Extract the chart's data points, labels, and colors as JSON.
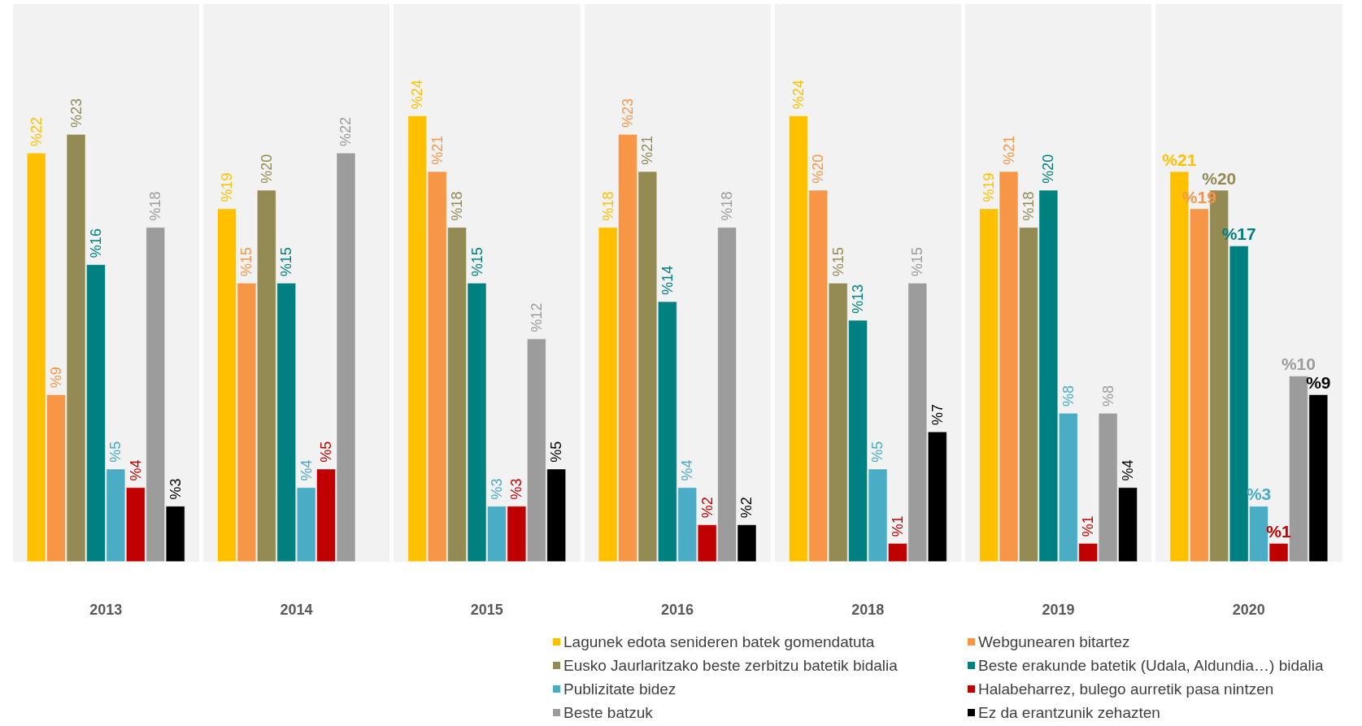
{
  "chart_data": {
    "type": "bar",
    "categories": [
      "2013",
      "2014",
      "2015",
      "2016",
      "2018",
      "2019",
      "2020"
    ],
    "series": [
      {
        "name": "Lagunek edota senideren batek gomendatuta",
        "color": "#ffc000",
        "values": [
          22,
          19,
          24,
          18,
          24,
          19,
          21
        ],
        "value_labels": [
          "%22",
          "%19",
          "%24",
          "%18",
          "%24",
          "%19",
          "%21"
        ]
      },
      {
        "name": "Webgunearen bitartez",
        "color": "#f79646",
        "values": [
          9,
          15,
          21,
          23,
          20,
          21,
          19
        ],
        "value_labels": [
          "%9",
          "%15",
          "%21",
          "%23",
          "%20",
          "%21",
          "%19"
        ]
      },
      {
        "name": "Eusko Jaurlaritzako beste zerbitzu batetik bidalia",
        "color": "#948a54",
        "values": [
          23,
          20,
          18,
          21,
          15,
          18,
          20
        ],
        "value_labels": [
          "%23",
          "%20",
          "%18",
          "%21",
          "%15",
          "%18",
          "%20"
        ]
      },
      {
        "name": "Beste erakunde batetik (Udala, Aldundia…) bidalia",
        "color": "#008080",
        "values": [
          16,
          15,
          15,
          14,
          13,
          20,
          17
        ],
        "value_labels": [
          "%16",
          "%15",
          "%15",
          "%14",
          "%13",
          "%20",
          "%17"
        ]
      },
      {
        "name": "Publizitate bidez",
        "color": "#4bacc6",
        "values": [
          5,
          4,
          3,
          4,
          5,
          8,
          3
        ],
        "value_labels": [
          "%5",
          "%4",
          "%3",
          "%4",
          "%5",
          "%8",
          "%3"
        ]
      },
      {
        "name": "Halabeharrez, bulego aurretik pasa nintzen",
        "color": "#c00000",
        "values": [
          4,
          5,
          3,
          2,
          1,
          1,
          1
        ],
        "value_labels": [
          "%4",
          "%5",
          "%3",
          "%2",
          "%1",
          "%1",
          "%1"
        ]
      },
      {
        "name": "Beste batzuk",
        "color": "#9c9c9c",
        "values": [
          18,
          22,
          12,
          18,
          15,
          8,
          10
        ],
        "value_labels": [
          "%18",
          "%22",
          "%12",
          "%18",
          "%15",
          "%8",
          "%10"
        ]
      },
      {
        "name": "Ez da erantzunik zehazten",
        "color": "#000000",
        "values": [
          3,
          null,
          5,
          2,
          7,
          4,
          9
        ],
        "value_labels": [
          "%3",
          null,
          "%5",
          "%2",
          "%7",
          "%4",
          "%9"
        ]
      }
    ],
    "legend": "bottom"
  }
}
